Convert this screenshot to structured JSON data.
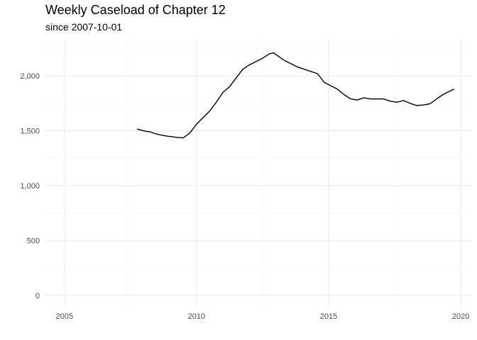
{
  "chart_data": {
    "type": "line",
    "title": "Weekly Caseload of Chapter 12",
    "subtitle": "since 2007-10-01",
    "xlabel": "",
    "ylabel": "",
    "x_ticks": [
      "2005",
      "2010",
      "2015",
      "2020"
    ],
    "y_ticks": [
      "0",
      "500",
      "1,000",
      "1,500",
      "2,000"
    ],
    "xlim": [
      2004.28,
      2020.4
    ],
    "ylim": [
      -110,
      2330
    ],
    "grid": true,
    "colors": {
      "line": "#000000",
      "grid_major": "#ebebeb",
      "grid_minor": "#f5f5f5",
      "text": "#4d4d4d"
    },
    "series": [
      {
        "x": [
          "2007-10-01",
          "2007-12-01",
          "2008-02-01",
          "2008-04-01",
          "2008-06-01",
          "2008-09-01",
          "2008-12-01",
          "2009-02-01",
          "2009-04-01",
          "2009-07-01",
          "2009-10-01",
          "2010-01-01",
          "2010-04-01",
          "2010-07-01",
          "2010-10-01",
          "2011-01-01",
          "2011-04-01",
          "2011-07-01",
          "2011-10-01",
          "2012-01-01",
          "2012-04-01",
          "2012-07-01",
          "2012-10-01",
          "2012-12-01",
          "2013-02-01",
          "2013-05-01",
          "2013-08-01",
          "2013-11-01",
          "2014-02-01",
          "2014-05-01",
          "2014-08-01",
          "2014-11-01",
          "2015-02-01",
          "2015-05-01",
          "2015-08-01",
          "2015-11-01",
          "2016-02-01",
          "2016-05-01",
          "2016-08-01",
          "2016-11-01",
          "2017-02-01",
          "2017-05-01",
          "2017-08-01",
          "2017-11-01",
          "2018-02-01",
          "2018-05-01",
          "2018-08-01",
          "2018-11-01",
          "2019-02-01",
          "2019-05-01",
          "2019-08-01",
          "2019-10-01"
        ],
        "values": [
          1515,
          1505,
          1495,
          1490,
          1475,
          1460,
          1450,
          1445,
          1440,
          1435,
          1480,
          1560,
          1620,
          1680,
          1760,
          1850,
          1900,
          1980,
          2060,
          2100,
          2130,
          2160,
          2200,
          2210,
          2180,
          2140,
          2110,
          2080,
          2060,
          2040,
          2020,
          1940,
          1910,
          1880,
          1830,
          1790,
          1780,
          1800,
          1790,
          1790,
          1790,
          1770,
          1760,
          1775,
          1750,
          1730,
          1735,
          1745,
          1790,
          1830,
          1860,
          1880
        ]
      }
    ]
  }
}
